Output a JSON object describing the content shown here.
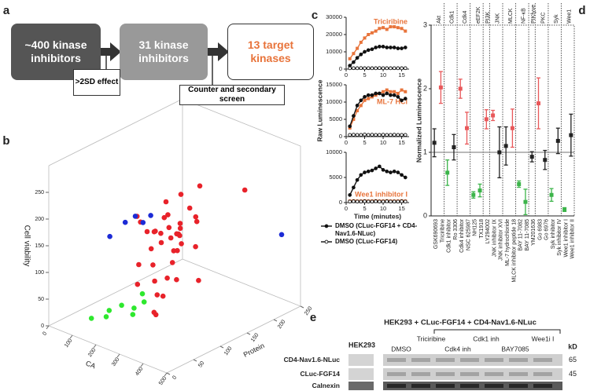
{
  "panel_labels": [
    "a",
    "b",
    "c",
    "d",
    "e"
  ],
  "flowchart": {
    "boxes": [
      "~400 kinase inhibitors",
      "31 kinase inhibitors",
      "13 target kinases"
    ],
    "criteria": [
      ">2SD effect",
      "Counter and secondary screen"
    ]
  },
  "chart_data": [
    {
      "type": "scatter3d",
      "x_label": "CA",
      "y_label": "Protein",
      "z_label": "Cell viability",
      "xlim": [
        0,
        500
      ],
      "ylim": [
        0,
        250
      ],
      "zlim": [
        0,
        300
      ],
      "xticks": [
        0,
        100,
        200,
        300,
        400,
        500
      ],
      "yticks": [
        0,
        50,
        100,
        150,
        200,
        250
      ],
      "zticks": [
        0,
        50,
        100,
        150,
        200,
        250
      ],
      "series": [
        {
          "color": "#e8222a",
          "x": [
            250,
            270,
            230,
            300,
            210,
            260,
            280,
            240,
            320,
            190,
            220,
            290,
            350,
            260,
            200,
            310,
            240,
            270,
            180,
            330,
            250,
            280,
            230,
            360,
            210,
            300,
            170,
            260,
            240,
            290,
            220,
            270,
            250,
            310,
            200,
            340,
            230,
            280,
            260,
            400
          ],
          "y": [
            100,
            120,
            90,
            110,
            130,
            80,
            140,
            110,
            90,
            100,
            150,
            70,
            120,
            160,
            80,
            140,
            60,
            100,
            130,
            100,
            130,
            90,
            120,
            80,
            110,
            150,
            90,
            110,
            140,
            120,
            100,
            80,
            90,
            60,
            140,
            130,
            70,
            110,
            130,
            190
          ],
          "z": [
            150,
            160,
            140,
            170,
            180,
            120,
            200,
            190,
            130,
            160,
            210,
            100,
            150,
            170,
            110,
            180,
            90,
            230,
            140,
            200,
            120,
            60,
            70,
            110,
            40,
            240,
            190,
            175,
            155,
            145,
            165,
            185,
            20,
            50,
            130,
            80,
            200,
            135,
            150,
            230
          ]
        },
        {
          "color": "#1c2bd6",
          "x": [
            120,
            140,
            150,
            100,
            160,
            420
          ],
          "y": [
            90,
            100,
            110,
            70,
            120,
            250
          ],
          "z": [
            170,
            180,
            165,
            150,
            175,
            120
          ]
        },
        {
          "color": "#2ee82e",
          "x": [
            120,
            150,
            180,
            130,
            200,
            90,
            220,
            170
          ],
          "y": [
            60,
            70,
            80,
            50,
            90,
            40,
            60,
            100
          ],
          "z": [
            20,
            30,
            25,
            15,
            35,
            10,
            30,
            40
          ]
        }
      ]
    },
    {
      "type": "line",
      "x": [
        1,
        2,
        3,
        4,
        5,
        6,
        7,
        8,
        9,
        10,
        11,
        12,
        13,
        14,
        15,
        16
      ],
      "xlim": [
        0,
        17
      ],
      "xticks": [
        0,
        5,
        10,
        15
      ],
      "ylim": [
        0,
        30000
      ],
      "yticks": [
        0,
        10000,
        20000,
        30000
      ],
      "series": [
        {
          "name": "Triciribine",
          "color": "#e8743b",
          "marker": "square",
          "values": [
            6000,
            9000,
            12000,
            15500,
            18000,
            20000,
            21000,
            22000,
            23500,
            24000,
            23000,
            24500,
            24500,
            24000,
            23500,
            22000
          ]
        },
        {
          "color": "#111111",
          "marker": "filled",
          "values": [
            2000,
            4000,
            6500,
            8500,
            10000,
            11000,
            11500,
            12500,
            13000,
            13000,
            12500,
            12500,
            12500,
            12000,
            12000,
            12500
          ]
        },
        {
          "color": "#111111",
          "marker": "open",
          "values": [
            500,
            550,
            500,
            600,
            500,
            550,
            500,
            500,
            600,
            550,
            500,
            500,
            550,
            500,
            500,
            550
          ]
        }
      ]
    },
    {
      "type": "line",
      "y_label": "Raw Luminescence",
      "x": [
        1,
        2,
        3,
        4,
        5,
        6,
        7,
        8,
        9,
        10,
        11,
        12,
        13,
        14,
        15,
        16
      ],
      "xlim": [
        0,
        17
      ],
      "xticks": [
        0,
        5,
        10,
        15
      ],
      "ylim": [
        0,
        15000
      ],
      "yticks": [
        0,
        5000,
        10000,
        15000
      ],
      "series": [
        {
          "name": "ML-7 HCl",
          "color": "#e8743b",
          "marker": "square",
          "values": [
            2500,
            5000,
            7500,
            9000,
            10500,
            11000,
            11500,
            12000,
            12500,
            13000,
            13500,
            13000,
            13000,
            12500,
            13500,
            13000
          ]
        },
        {
          "color": "#111111",
          "marker": "filled",
          "values": [
            3000,
            6000,
            9000,
            10500,
            11500,
            12000,
            12000,
            12500,
            12500,
            12000,
            12500,
            12000,
            12000,
            11500,
            10500,
            11000
          ]
        },
        {
          "color": "#111111",
          "marker": "open",
          "values": [
            500,
            550,
            500,
            500,
            600,
            500,
            550,
            500,
            500,
            550,
            500,
            500,
            550,
            500,
            500,
            500
          ]
        }
      ]
    },
    {
      "type": "line",
      "x_label": "Time (minutes)",
      "x": [
        1,
        2,
        3,
        4,
        5,
        6,
        7,
        8,
        9,
        10,
        11,
        12,
        13,
        14,
        15,
        16
      ],
      "xlim": [
        0,
        17
      ],
      "xticks": [
        0,
        5,
        10,
        15
      ],
      "ylim": [
        0,
        10000
      ],
      "yticks": [
        0,
        5000,
        10000
      ],
      "series": [
        {
          "name": "Wee1 inhibitor I",
          "color": "#e8743b",
          "marker": "square",
          "values": [
            300,
            350,
            300,
            300,
            350,
            300,
            300,
            350,
            300,
            300,
            350,
            300,
            300,
            300,
            350,
            300
          ]
        },
        {
          "name": "DMSO (CLuc-FGF14 + CD4-Nav1.6-NLuc)",
          "color": "#111111",
          "marker": "filled",
          "values": [
            1500,
            3000,
            4500,
            5500,
            6000,
            6200,
            6400,
            6800,
            7200,
            6500,
            6200,
            6000,
            6200,
            6000,
            5500,
            5000
          ]
        },
        {
          "name": "DMSO (CLuc-FGF14)",
          "color": "#111111",
          "marker": "open",
          "values": [
            200,
            250,
            200,
            200,
            250,
            200,
            200,
            250,
            200,
            200,
            250,
            200,
            200,
            200,
            250,
            200
          ]
        }
      ]
    },
    {
      "type": "dot",
      "y_label": "Normalized Luminescence",
      "ylim": [
        0,
        3
      ],
      "yticks": [
        0,
        1,
        2,
        3
      ],
      "reference_line": 1,
      "groups": [
        {
          "name": "Akt",
          "categories": [
            "GSK690693",
            "Triciribine"
          ],
          "values": [
            1.15,
            2.02
          ],
          "errors": [
            0.22,
            0.25
          ],
          "colors": [
            "#222222",
            "#e8585a"
          ]
        },
        {
          "name": "Cdk1",
          "categories": [
            "Cdk1 inhibitor",
            "Ro 3306"
          ],
          "values": [
            0.68,
            1.08
          ],
          "errors": [
            0.2,
            0.2
          ],
          "colors": [
            "#3cb44a",
            "#222222"
          ]
        },
        {
          "name": "Cdk4",
          "categories": [
            "Cdk4 inhibitor",
            "NSC 625987"
          ],
          "values": [
            2.0,
            1.38
          ],
          "errors": [
            0.15,
            0.25
          ],
          "colors": [
            "#e8585a",
            "#e8585a"
          ]
        },
        {
          "name": "eEF2K",
          "categories": [
            "NH125",
            "TX1918"
          ],
          "values": [
            0.33,
            0.4
          ],
          "errors": [
            0.05,
            0.1
          ],
          "colors": [
            "#3cb44a",
            "#3cb44a"
          ]
        },
        {
          "name": "PI3K",
          "categories": [
            "LY294002"
          ],
          "values": [
            1.52
          ],
          "errors": [
            0.15
          ],
          "colors": [
            "#e8585a"
          ]
        },
        {
          "name": "JNK",
          "categories": [
            "JNK inhibitor IX",
            "JNK inhibitor XVI"
          ],
          "values": [
            1.58,
            1.0
          ],
          "errors": [
            0.08,
            0.4
          ],
          "colors": [
            "#e8585a",
            "#222222"
          ]
        },
        {
          "name": "MLCK",
          "categories": [
            "ML-7 hydrochloride",
            "MLCK inhibitor peptide 18"
          ],
          "values": [
            1.1,
            1.38
          ],
          "errors": [
            0.3,
            0.3
          ],
          "colors": [
            "#222222",
            "#e8585a"
          ]
        },
        {
          "name": "NF-κB",
          "categories": [
            "BAY 11-7082",
            "BAY 11-7085"
          ],
          "values": [
            0.5,
            0.22
          ],
          "errors": [
            0.05,
            0.2
          ],
          "colors": [
            "#3cb44a",
            "#3cb44a"
          ]
        },
        {
          "name": "PIKfyve",
          "categories": [
            "YM201636"
          ],
          "values": [
            0.93
          ],
          "errors": [
            0.08
          ],
          "colors": [
            "#222222"
          ]
        },
        {
          "name": "PKC",
          "categories": [
            "Go 6983",
            "Go 6976"
          ],
          "values": [
            1.77,
            0.88
          ],
          "errors": [
            0.4,
            0.15
          ],
          "colors": [
            "#e8585a",
            "#222222"
          ]
        },
        {
          "name": "Syk",
          "categories": [
            "Syk inhibitor",
            "Syk inhibitor IV"
          ],
          "values": [
            0.33,
            1.18
          ],
          "errors": [
            0.1,
            0.2
          ],
          "colors": [
            "#3cb44a",
            "#222222"
          ]
        },
        {
          "name": "Wee1",
          "categories": [
            "Wee1 inhibitor I",
            "Wee1 inhibitor II"
          ],
          "values": [
            0.1,
            1.27
          ],
          "errors": [
            0.03,
            0.33
          ],
          "colors": [
            "#3cb44a",
            "#222222"
          ]
        }
      ]
    }
  ],
  "blot": {
    "title": "HEK293 + CLuc-FGF14 + CD4-Nav1.6-NLuc",
    "control_lane": "HEK293",
    "lanes_top": [
      "Triciribine",
      "Cdk1 inh",
      "Wee1i I"
    ],
    "lanes_bottom": [
      "DMSO",
      "Cdk4 inh",
      "BAY7085"
    ],
    "unit": "kD",
    "rows": [
      {
        "label": "CD4-Nav1.6-NLuc",
        "marker": 65
      },
      {
        "label": "CLuc-FGF14",
        "marker": 45
      },
      {
        "label": "Calnexin"
      }
    ]
  }
}
